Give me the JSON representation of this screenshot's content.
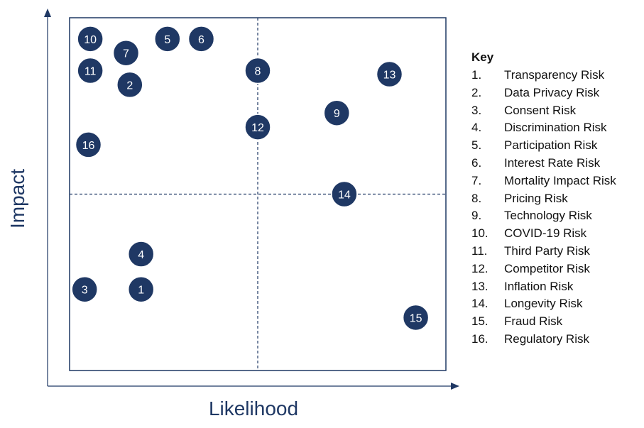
{
  "chart_data": {
    "type": "scatter",
    "title": "",
    "xlabel": "Likelihood",
    "ylabel": "Impact",
    "xlim": [
      0,
      10
    ],
    "ylim": [
      0,
      10
    ],
    "grid": false,
    "quadrant_divider": {
      "x": 5,
      "y": 5
    },
    "marker_color": "#1f3864",
    "label_color": "#ffffff",
    "axis_color": "#1f3864",
    "points": [
      {
        "id": "1",
        "x": 1.9,
        "y": 2.3
      },
      {
        "id": "2",
        "x": 1.6,
        "y": 8.1
      },
      {
        "id": "3",
        "x": 0.4,
        "y": 2.3
      },
      {
        "id": "4",
        "x": 1.9,
        "y": 3.3
      },
      {
        "id": "5",
        "x": 2.6,
        "y": 9.4
      },
      {
        "id": "6",
        "x": 3.5,
        "y": 9.4
      },
      {
        "id": "7",
        "x": 1.5,
        "y": 9.0
      },
      {
        "id": "8",
        "x": 5.0,
        "y": 8.5
      },
      {
        "id": "9",
        "x": 7.1,
        "y": 7.3
      },
      {
        "id": "10",
        "x": 0.55,
        "y": 9.4
      },
      {
        "id": "11",
        "x": 0.55,
        "y": 8.5
      },
      {
        "id": "12",
        "x": 5.0,
        "y": 6.9
      },
      {
        "id": "13",
        "x": 8.5,
        "y": 8.4
      },
      {
        "id": "14",
        "x": 7.3,
        "y": 5.0
      },
      {
        "id": "15",
        "x": 9.2,
        "y": 1.5
      },
      {
        "id": "16",
        "x": 0.5,
        "y": 6.4
      }
    ]
  },
  "key": {
    "title": "Key",
    "items": [
      {
        "num": "1.",
        "label": "Transparency Risk"
      },
      {
        "num": "2.",
        "label": "Data Privacy Risk"
      },
      {
        "num": "3.",
        "label": "Consent Risk"
      },
      {
        "num": "4.",
        "label": "Discrimination Risk"
      },
      {
        "num": "5.",
        "label": "Participation Risk"
      },
      {
        "num": "6.",
        "label": "Interest Rate Risk"
      },
      {
        "num": "7.",
        "label": "Mortality Impact Risk"
      },
      {
        "num": "8.",
        "label": "Pricing Risk"
      },
      {
        "num": "9.",
        "label": "Technology Risk"
      },
      {
        "num": "10.",
        "label": "COVID-19 Risk"
      },
      {
        "num": "11.",
        "label": "Third Party Risk"
      },
      {
        "num": "12.",
        "label": "Competitor Risk"
      },
      {
        "num": "13.",
        "label": "Inflation Risk"
      },
      {
        "num": "14.",
        "label": "Longevity Risk"
      },
      {
        "num": "15.",
        "label": "Fraud Risk"
      },
      {
        "num": "16.",
        "label": "Regulatory Risk"
      }
    ]
  }
}
